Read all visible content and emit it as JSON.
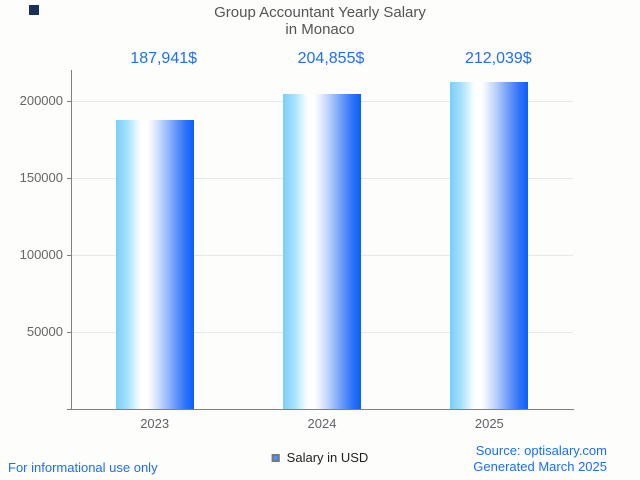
{
  "title": {
    "line1": "Group Accountant Yearly Salary",
    "line2": "in Monaco"
  },
  "chart_data": {
    "type": "bar",
    "title": "Group Accountant Yearly Salary in Monaco",
    "categories": [
      "2023",
      "2024",
      "2025"
    ],
    "values": [
      187941,
      204855,
      212039
    ],
    "value_labels": [
      "187,941$",
      "204,855$",
      "212,039$"
    ],
    "series": [
      {
        "name": "Salary in USD",
        "values": [
          187941,
          204855,
          212039
        ]
      }
    ],
    "xlabel": "",
    "ylabel": "",
    "y_ticks": [
      50000,
      100000,
      150000,
      200000
    ],
    "y_tick_labels": [
      "50000",
      "100000",
      "150000",
      "200000"
    ],
    "ylim": [
      0,
      220000
    ],
    "grid": true,
    "legend_position": "bottom"
  },
  "legend": {
    "label": "Salary in USD"
  },
  "footer": {
    "left": "For informational use only",
    "source": "Source: optisalary.com",
    "generated": "Generated March 2025"
  },
  "colors": {
    "accent_blue": "#1a6ff2",
    "bar_gradient_left": "#79cefb",
    "bar_gradient_mid": "#ffffff",
    "bar_gradient_right": "#0a60fa",
    "legend_marker_fill": "#4d90fe",
    "legend_marker_border": "#76787a",
    "axis_line": "#808080",
    "gridline": "#e8e8e8",
    "tick_text": "#666666",
    "title_text": "#545454",
    "background": "#fdfdfc",
    "corner_mark": "#17315c"
  }
}
